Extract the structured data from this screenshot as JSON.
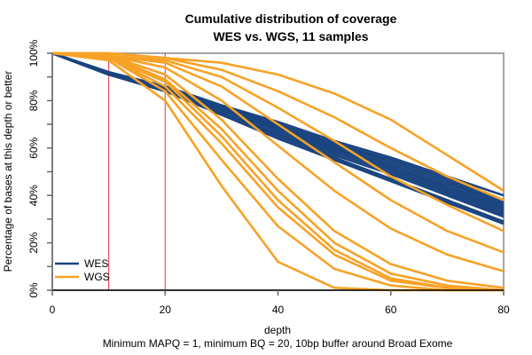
{
  "chart_data": {
    "type": "line",
    "title": "Cumulative distribution of coverage",
    "subtitle": "WES vs. WGS, 11 samples",
    "xlabel": "depth",
    "xlabel_note": "Minimum MAPQ = 1, minimum BQ = 20, 10bp buffer around Broad Exome",
    "ylabel": "Percentage of bases at this depth or better",
    "xlim": [
      0,
      80
    ],
    "ylim": [
      0,
      100
    ],
    "xticks": [
      "0",
      "20",
      "40",
      "60",
      "80"
    ],
    "xtick_values": [
      0,
      20,
      40,
      60,
      80
    ],
    "yticks": [
      "0%",
      "20%",
      "40%",
      "60%",
      "80%",
      "100%"
    ],
    "ytick_values": [
      0,
      20,
      40,
      60,
      80,
      100
    ],
    "vlines": [
      10,
      20
    ],
    "legend": {
      "position": "bottom-left",
      "entries": [
        {
          "label": "WES",
          "color": "#1a4480"
        },
        {
          "label": "WGS",
          "color": "#f7a226"
        }
      ]
    },
    "x": [
      0,
      10,
      20,
      30,
      40,
      50,
      60,
      70,
      80
    ],
    "series": [
      {
        "name": "WES",
        "color": "#1a4480",
        "values": [
          100,
          92,
          86,
          78,
          71,
          63,
          56,
          48,
          40
        ]
      },
      {
        "name": "WES",
        "color": "#1a4480",
        "values": [
          100,
          92,
          86,
          78,
          70,
          62,
          55,
          47,
          38
        ]
      },
      {
        "name": "WES",
        "color": "#1a4480",
        "values": [
          100,
          92,
          86,
          78,
          70,
          62,
          54,
          46,
          37
        ]
      },
      {
        "name": "WES",
        "color": "#1a4480",
        "values": [
          100,
          92,
          86,
          77,
          69,
          61,
          53,
          45,
          36
        ]
      },
      {
        "name": "WES",
        "color": "#1a4480",
        "values": [
          100,
          92,
          85,
          77,
          69,
          60,
          52,
          44,
          35
        ]
      },
      {
        "name": "WES",
        "color": "#1a4480",
        "values": [
          100,
          91,
          85,
          77,
          68,
          60,
          52,
          43,
          34
        ]
      },
      {
        "name": "WES",
        "color": "#1a4480",
        "values": [
          100,
          91,
          85,
          76,
          68,
          59,
          51,
          42,
          33
        ]
      },
      {
        "name": "WES",
        "color": "#1a4480",
        "values": [
          100,
          91,
          85,
          76,
          67,
          58,
          50,
          41,
          32
        ]
      },
      {
        "name": "WES",
        "color": "#1a4480",
        "values": [
          100,
          91,
          84,
          75,
          66,
          57,
          49,
          40,
          31
        ]
      },
      {
        "name": "WES",
        "color": "#1a4480",
        "values": [
          100,
          91,
          84,
          75,
          65,
          56,
          47,
          38,
          29
        ]
      },
      {
        "name": "WES",
        "color": "#1a4480",
        "values": [
          100,
          91,
          84,
          74,
          64,
          55,
          46,
          37,
          28
        ]
      },
      {
        "name": "WGS",
        "color": "#f7a226",
        "values": [
          100,
          100,
          98,
          96,
          91,
          83,
          72,
          57,
          42
        ]
      },
      {
        "name": "WGS",
        "color": "#f7a226",
        "values": [
          100,
          100,
          98,
          93,
          84,
          73,
          60,
          48,
          38
        ]
      },
      {
        "name": "WGS",
        "color": "#f7a226",
        "values": [
          100,
          99,
          97,
          90,
          77,
          63,
          48,
          36,
          25
        ]
      },
      {
        "name": "WGS",
        "color": "#f7a226",
        "values": [
          100,
          99,
          96,
          86,
          70,
          54,
          38,
          25,
          16
        ]
      },
      {
        "name": "WGS",
        "color": "#f7a226",
        "values": [
          100,
          99,
          94,
          80,
          61,
          42,
          26,
          15,
          8
        ]
      },
      {
        "name": "WGS",
        "color": "#f7a226",
        "values": [
          100,
          99,
          91,
          72,
          47,
          25,
          11,
          4,
          1
        ]
      },
      {
        "name": "WGS",
        "color": "#f7a226",
        "values": [
          100,
          99,
          89,
          68,
          42,
          20,
          7,
          2,
          0
        ]
      },
      {
        "name": "WGS",
        "color": "#f7a226",
        "values": [
          100,
          98,
          88,
          65,
          38,
          17,
          5,
          1,
          0
        ]
      },
      {
        "name": "WGS",
        "color": "#f7a226",
        "values": [
          100,
          98,
          86,
          62,
          35,
          15,
          4,
          1,
          0
        ]
      },
      {
        "name": "WGS",
        "color": "#f7a226",
        "values": [
          100,
          98,
          84,
          55,
          27,
          9,
          2,
          0,
          0
        ]
      },
      {
        "name": "WGS",
        "color": "#f7a226",
        "values": [
          100,
          97,
          80,
          44,
          12,
          1,
          0,
          0,
          0
        ]
      }
    ]
  }
}
